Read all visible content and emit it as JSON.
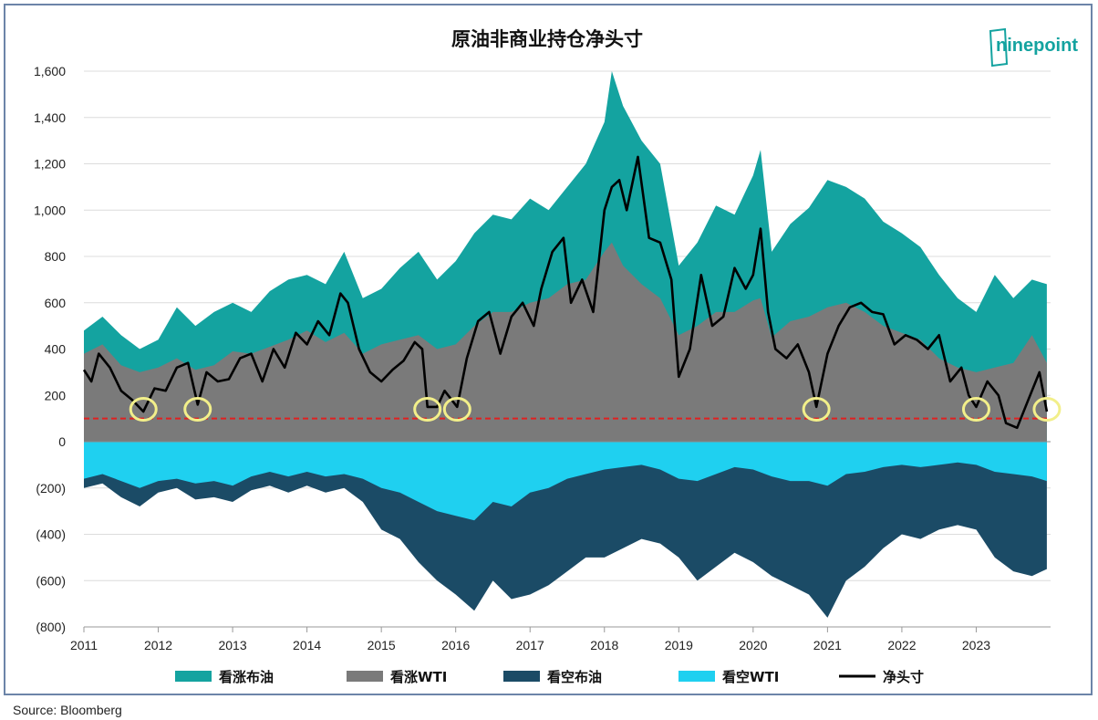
{
  "chart_data": {
    "type": "area",
    "title": "原油非商业持仓净头寸",
    "source": "Source: Bloomberg",
    "logo_text": "ninepoint",
    "x_tick_labels": [
      "2011",
      "2012",
      "2013",
      "2014",
      "2015",
      "2016",
      "2017",
      "2018",
      "2019",
      "2020",
      "2021",
      "2022",
      "2023"
    ],
    "y_tick_labels": [
      "1,600",
      "1,400",
      "1,200",
      "1,000",
      "800",
      "600",
      "400",
      "200",
      "0",
      "(200)",
      "(400)",
      "(600)",
      "(800)"
    ],
    "y_tick_values": [
      1600,
      1400,
      1200,
      1000,
      800,
      600,
      400,
      200,
      0,
      -200,
      -400,
      -600,
      -800
    ],
    "ylim": [
      -800,
      1600
    ],
    "xlim": [
      2011.0,
      2024.0
    ],
    "reference_line": {
      "y": 100,
      "color": "#e02020",
      "style": "dashed"
    },
    "highlight_circles_x": [
      2011.8,
      2012.53,
      2015.62,
      2016.02,
      2020.85,
      2023.0,
      2023.95
    ],
    "legend_position": "bottom",
    "series": [
      {
        "name": "看涨布油",
        "color": "#14a3a0",
        "kind": "stacked-positive",
        "x": [
          2011.0,
          2011.25,
          2011.5,
          2011.75,
          2012.0,
          2012.25,
          2012.5,
          2012.75,
          2013.0,
          2013.25,
          2013.5,
          2013.75,
          2014.0,
          2014.25,
          2014.5,
          2014.75,
          2015.0,
          2015.25,
          2015.5,
          2015.75,
          2016.0,
          2016.25,
          2016.5,
          2016.75,
          2017.0,
          2017.25,
          2017.5,
          2017.75,
          2018.0,
          2018.1,
          2018.25,
          2018.5,
          2018.75,
          2019.0,
          2019.25,
          2019.5,
          2019.75,
          2020.0,
          2020.1,
          2020.25,
          2020.5,
          2020.75,
          2021.0,
          2021.25,
          2021.5,
          2021.75,
          2022.0,
          2022.25,
          2022.5,
          2022.75,
          2023.0,
          2023.25,
          2023.5,
          2023.75,
          2023.95
        ],
        "values": [
          480,
          540,
          460,
          400,
          440,
          580,
          500,
          560,
          600,
          560,
          650,
          700,
          720,
          680,
          820,
          620,
          660,
          750,
          820,
          700,
          780,
          900,
          980,
          960,
          1050,
          1000,
          1100,
          1200,
          1380,
          1600,
          1450,
          1300,
          1200,
          760,
          860,
          1020,
          980,
          1150,
          1260,
          820,
          940,
          1010,
          1130,
          1100,
          1050,
          950,
          900,
          840,
          720,
          620,
          560,
          720,
          620,
          700,
          680
        ]
      },
      {
        "name": "看涨WTI",
        "color": "#7a7a7a",
        "kind": "stacked-positive",
        "x": [
          2011.0,
          2011.25,
          2011.5,
          2011.75,
          2012.0,
          2012.25,
          2012.5,
          2012.75,
          2013.0,
          2013.25,
          2013.5,
          2013.75,
          2014.0,
          2014.25,
          2014.5,
          2014.75,
          2015.0,
          2015.25,
          2015.5,
          2015.75,
          2016.0,
          2016.25,
          2016.5,
          2016.75,
          2017.0,
          2017.25,
          2017.5,
          2017.75,
          2018.0,
          2018.1,
          2018.25,
          2018.5,
          2018.75,
          2019.0,
          2019.25,
          2019.5,
          2019.75,
          2020.0,
          2020.1,
          2020.25,
          2020.5,
          2020.75,
          2021.0,
          2021.25,
          2021.5,
          2021.75,
          2022.0,
          2022.25,
          2022.5,
          2022.75,
          2023.0,
          2023.25,
          2023.5,
          2023.75,
          2023.95
        ],
        "values": [
          380,
          420,
          330,
          300,
          320,
          360,
          310,
          330,
          390,
          380,
          410,
          440,
          480,
          430,
          470,
          380,
          420,
          440,
          460,
          400,
          420,
          500,
          560,
          560,
          600,
          620,
          680,
          700,
          820,
          860,
          760,
          680,
          620,
          460,
          500,
          560,
          560,
          610,
          620,
          450,
          520,
          540,
          580,
          600,
          560,
          500,
          470,
          440,
          360,
          320,
          300,
          320,
          340,
          460,
          340
        ]
      },
      {
        "name": "看空布油",
        "color": "#1b4b66",
        "kind": "negative",
        "x": [
          2011.0,
          2011.25,
          2011.5,
          2011.75,
          2012.0,
          2012.25,
          2012.5,
          2012.75,
          2013.0,
          2013.25,
          2013.5,
          2013.75,
          2014.0,
          2014.25,
          2014.5,
          2014.75,
          2015.0,
          2015.25,
          2015.5,
          2015.75,
          2016.0,
          2016.25,
          2016.5,
          2016.75,
          2017.0,
          2017.25,
          2017.5,
          2017.75,
          2018.0,
          2018.25,
          2018.5,
          2018.75,
          2019.0,
          2019.25,
          2019.5,
          2019.75,
          2020.0,
          2020.25,
          2020.5,
          2020.75,
          2021.0,
          2021.25,
          2021.5,
          2021.75,
          2022.0,
          2022.25,
          2022.5,
          2022.75,
          2023.0,
          2023.25,
          2023.5,
          2023.75,
          2023.95
        ],
        "values": [
          -200,
          -180,
          -240,
          -280,
          -220,
          -200,
          -250,
          -240,
          -260,
          -210,
          -190,
          -220,
          -190,
          -220,
          -200,
          -260,
          -380,
          -420,
          -520,
          -600,
          -660,
          -730,
          -600,
          -680,
          -660,
          -620,
          -560,
          -500,
          -500,
          -460,
          -420,
          -440,
          -500,
          -600,
          -540,
          -480,
          -520,
          -580,
          -620,
          -660,
          -760,
          -600,
          -540,
          -460,
          -400,
          -420,
          -380,
          -360,
          -380,
          -500,
          -560,
          -580,
          -550
        ]
      },
      {
        "name": "看空WTI",
        "color": "#1fd0f0",
        "kind": "negative",
        "x": [
          2011.0,
          2011.25,
          2011.5,
          2011.75,
          2012.0,
          2012.25,
          2012.5,
          2012.75,
          2013.0,
          2013.25,
          2013.5,
          2013.75,
          2014.0,
          2014.25,
          2014.5,
          2014.75,
          2015.0,
          2015.25,
          2015.5,
          2015.75,
          2016.0,
          2016.25,
          2016.5,
          2016.75,
          2017.0,
          2017.25,
          2017.5,
          2017.75,
          2018.0,
          2018.25,
          2018.5,
          2018.75,
          2019.0,
          2019.25,
          2019.5,
          2019.75,
          2020.0,
          2020.25,
          2020.5,
          2020.75,
          2021.0,
          2021.25,
          2021.5,
          2021.75,
          2022.0,
          2022.25,
          2022.5,
          2022.75,
          2023.0,
          2023.25,
          2023.5,
          2023.75,
          2023.95
        ],
        "values": [
          -160,
          -140,
          -170,
          -200,
          -170,
          -160,
          -180,
          -170,
          -190,
          -150,
          -130,
          -150,
          -130,
          -150,
          -140,
          -160,
          -200,
          -220,
          -260,
          -300,
          -320,
          -340,
          -260,
          -280,
          -220,
          -200,
          -160,
          -140,
          -120,
          -110,
          -100,
          -120,
          -160,
          -170,
          -140,
          -110,
          -120,
          -150,
          -170,
          -170,
          -190,
          -140,
          -130,
          -110,
          -100,
          -110,
          -100,
          -90,
          -100,
          -130,
          -140,
          -150,
          -170
        ]
      },
      {
        "name": "净头寸",
        "color": "#000000",
        "kind": "line",
        "x": [
          2011.0,
          2011.1,
          2011.2,
          2011.35,
          2011.5,
          2011.65,
          2011.8,
          2011.95,
          2012.1,
          2012.25,
          2012.4,
          2012.53,
          2012.65,
          2012.8,
          2012.95,
          2013.1,
          2013.25,
          2013.4,
          2013.55,
          2013.7,
          2013.85,
          2014.0,
          2014.15,
          2014.3,
          2014.45,
          2014.55,
          2014.7,
          2014.85,
          2015.0,
          2015.15,
          2015.3,
          2015.45,
          2015.55,
          2015.62,
          2015.75,
          2015.85,
          2016.02,
          2016.15,
          2016.3,
          2016.45,
          2016.6,
          2016.75,
          2016.9,
          2017.05,
          2017.15,
          2017.3,
          2017.45,
          2017.55,
          2017.7,
          2017.85,
          2018.0,
          2018.1,
          2018.2,
          2018.3,
          2018.45,
          2018.6,
          2018.75,
          2018.9,
          2019.0,
          2019.15,
          2019.3,
          2019.45,
          2019.6,
          2019.75,
          2019.9,
          2020.0,
          2020.1,
          2020.2,
          2020.3,
          2020.45,
          2020.6,
          2020.75,
          2020.85,
          2021.0,
          2021.15,
          2021.3,
          2021.45,
          2021.6,
          2021.75,
          2021.9,
          2022.05,
          2022.2,
          2022.35,
          2022.5,
          2022.65,
          2022.8,
          2022.9,
          2023.0,
          2023.15,
          2023.3,
          2023.4,
          2023.55,
          2023.7,
          2023.85,
          2023.95
        ],
        "values": [
          310,
          260,
          380,
          320,
          220,
          180,
          130,
          230,
          220,
          320,
          340,
          160,
          300,
          260,
          270,
          360,
          380,
          260,
          400,
          320,
          470,
          420,
          520,
          460,
          640,
          600,
          400,
          300,
          260,
          310,
          350,
          430,
          400,
          150,
          150,
          220,
          150,
          360,
          520,
          560,
          380,
          540,
          600,
          500,
          660,
          820,
          880,
          600,
          700,
          560,
          1000,
          1100,
          1130,
          1000,
          1230,
          880,
          860,
          700,
          280,
          400,
          720,
          500,
          540,
          750,
          660,
          720,
          920,
          560,
          400,
          360,
          420,
          300,
          150,
          380,
          500,
          580,
          600,
          560,
          550,
          420,
          460,
          440,
          400,
          460,
          260,
          320,
          200,
          150,
          260,
          200,
          80,
          60,
          180,
          300,
          130
        ]
      }
    ]
  }
}
